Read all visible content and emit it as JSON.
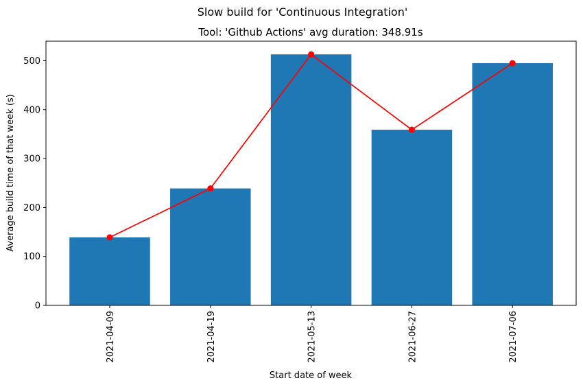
{
  "chart_data": {
    "type": "bar",
    "suptitle": "Slow build for 'Continuous Integration'",
    "title": "Tool: 'Github Actions' avg duration: 348.91s",
    "xlabel": "Start date of week",
    "ylabel": "Average build time of that week (s)",
    "categories": [
      "2021-04-09",
      "2021-04-19",
      "2021-05-13",
      "2021-06-27",
      "2021-07-06"
    ],
    "values": [
      139,
      239,
      513,
      359,
      495
    ],
    "line_values": [
      139,
      239,
      513,
      359,
      495
    ],
    "ylim": [
      0,
      540
    ],
    "yticks": [
      0,
      100,
      200,
      300,
      400,
      500
    ],
    "bar_color": "#1f77b4",
    "line_color": "#ff0000",
    "grid": false,
    "legend": "none"
  }
}
